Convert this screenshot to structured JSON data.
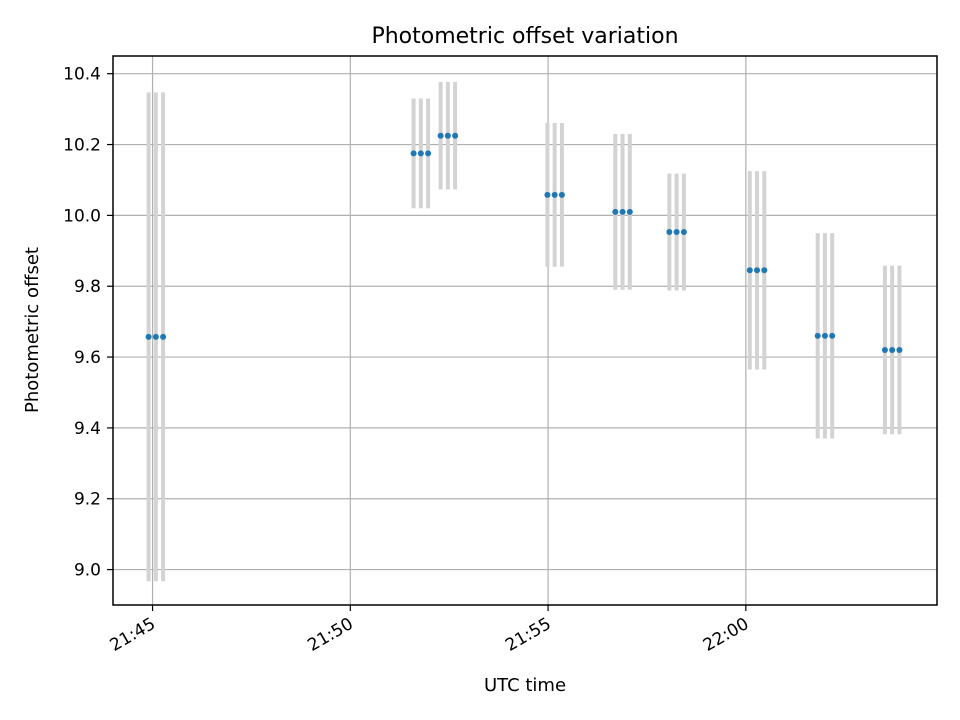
{
  "chart_data": {
    "type": "scatter",
    "title": "Photometric offset variation",
    "xlabel": "UTC time",
    "ylabel": "Photometric offset",
    "xlim": [
      "21:44:00",
      "22:04:50"
    ],
    "ylim": [
      8.9,
      10.45
    ],
    "x_ticks": [
      "21:45",
      "21:50",
      "21:55",
      "22:00"
    ],
    "y_ticks": [
      "9.0",
      "9.2",
      "9.4",
      "9.6",
      "9.8",
      "10.0",
      "10.2",
      "10.4"
    ],
    "grid": true,
    "point_color": "#1f77b4",
    "errorbar_color": "#d3d3d3",
    "points": [
      {
        "t": "21:44:54",
        "y": 9.657,
        "err": 0.69
      },
      {
        "t": "21:45:05",
        "y": 9.657,
        "err": 0.69
      },
      {
        "t": "21:45:16",
        "y": 9.657,
        "err": 0.69
      },
      {
        "t": "21:51:36",
        "y": 10.175,
        "err": 0.155
      },
      {
        "t": "21:51:47",
        "y": 10.175,
        "err": 0.155
      },
      {
        "t": "21:51:58",
        "y": 10.175,
        "err": 0.155
      },
      {
        "t": "21:52:17",
        "y": 10.225,
        "err": 0.152
      },
      {
        "t": "21:52:28",
        "y": 10.225,
        "err": 0.152
      },
      {
        "t": "21:52:39",
        "y": 10.225,
        "err": 0.152
      },
      {
        "t": "21:54:59",
        "y": 10.058,
        "err": 0.203
      },
      {
        "t": "21:55:10",
        "y": 10.058,
        "err": 0.203
      },
      {
        "t": "21:55:21",
        "y": 10.058,
        "err": 0.203
      },
      {
        "t": "21:56:42",
        "y": 10.01,
        "err": 0.22
      },
      {
        "t": "21:56:53",
        "y": 10.01,
        "err": 0.22
      },
      {
        "t": "21:57:04",
        "y": 10.01,
        "err": 0.22
      },
      {
        "t": "21:58:04",
        "y": 9.953,
        "err": 0.165
      },
      {
        "t": "21:58:15",
        "y": 9.953,
        "err": 0.165
      },
      {
        "t": "21:58:26",
        "y": 9.953,
        "err": 0.165
      },
      {
        "t": "22:00:06",
        "y": 9.845,
        "err": 0.28
      },
      {
        "t": "22:00:17",
        "y": 9.845,
        "err": 0.28
      },
      {
        "t": "22:00:28",
        "y": 9.845,
        "err": 0.28
      },
      {
        "t": "22:01:49",
        "y": 9.66,
        "err": 0.29
      },
      {
        "t": "22:02:00",
        "y": 9.66,
        "err": 0.29
      },
      {
        "t": "22:02:11",
        "y": 9.66,
        "err": 0.29
      },
      {
        "t": "22:03:31",
        "y": 9.62,
        "err": 0.238
      },
      {
        "t": "22:03:42",
        "y": 9.62,
        "err": 0.238
      },
      {
        "t": "22:03:53",
        "y": 9.62,
        "err": 0.238
      }
    ]
  }
}
